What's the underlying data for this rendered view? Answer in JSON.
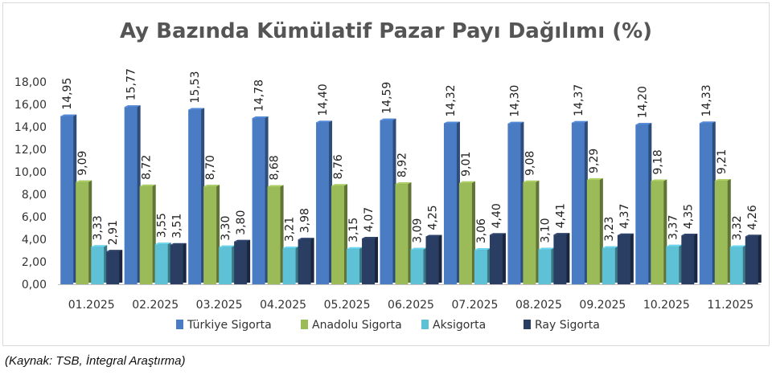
{
  "chart_data": {
    "type": "bar",
    "title": "Ay Bazında Kümülatif Pazar Payı Dağılımı (%)",
    "categories": [
      "01.2025",
      "02.2025",
      "03.2025",
      "04.2025",
      "05.2025",
      "06.2025",
      "07.2025",
      "08.2025",
      "09.2025",
      "10.2025",
      "11.2025"
    ],
    "series": [
      {
        "name": "Türkiye Sigorta",
        "color": "#4a7cc4",
        "values": [
          14.95,
          15.77,
          15.53,
          14.78,
          14.4,
          14.59,
          14.32,
          14.3,
          14.37,
          14.2,
          14.33
        ]
      },
      {
        "name": "Anadolu Sigorta",
        "color": "#9bbb59",
        "values": [
          9.09,
          8.72,
          8.7,
          8.68,
          8.76,
          8.92,
          9.01,
          9.08,
          9.29,
          9.18,
          9.21
        ]
      },
      {
        "name": "Aksigorta",
        "color": "#5fc1d6",
        "values": [
          3.33,
          3.55,
          3.3,
          3.21,
          3.15,
          3.09,
          3.06,
          3.1,
          3.23,
          3.37,
          3.32
        ]
      },
      {
        "name": "Ray Sigorta",
        "color": "#2a3d63",
        "values": [
          2.91,
          3.51,
          3.8,
          3.98,
          4.07,
          4.25,
          4.4,
          4.41,
          4.37,
          4.35,
          4.26
        ]
      }
    ],
    "ylim": [
      0,
      18
    ],
    "yticks": [
      "0,00",
      "2,00",
      "4,00",
      "6,00",
      "8,00",
      "10,00",
      "12,00",
      "14,00",
      "16,00",
      "18,00"
    ],
    "xlabel": "",
    "ylabel": "",
    "grid": false,
    "legend": "bottom",
    "decimal_separator": ","
  },
  "source": "(Kaynak: TSB, İntegral Araştırma)"
}
